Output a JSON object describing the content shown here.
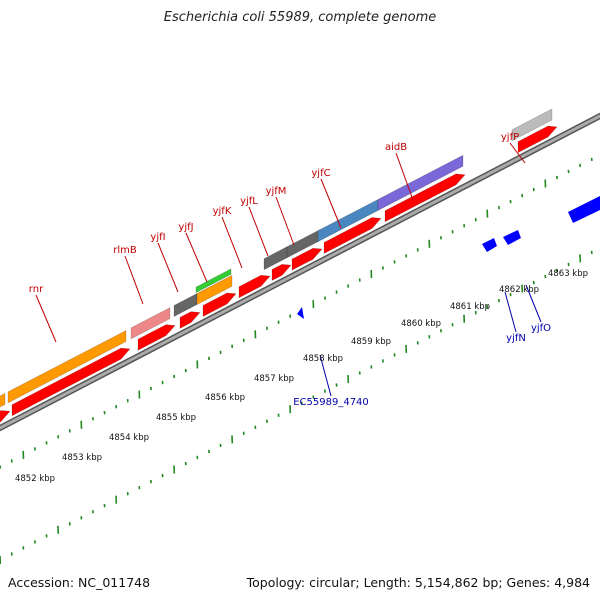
{
  "title": "Escherichia coli 55989, complete genome",
  "footer": {
    "accession": "Accession: NC_011748",
    "summary": "Topology: circular; Length: 5,154,862 bp; Genes: 4,984"
  },
  "colors": {
    "forward_label": "#c00000",
    "reverse_label": "#0000aa",
    "cds": "#ff0000",
    "cds_reverse": "#0000ff",
    "backbone": "#888888",
    "tick": "#228822"
  },
  "kbp_labels": [
    "4852 kbp",
    "4853 kbp",
    "4854 kbp",
    "4855 kbp",
    "4856 kbp",
    "4857 kbp",
    "4858 kbp",
    "4859 kbp",
    "4860 kbp",
    "4861 kbp",
    "4862 kbp",
    "4863 kbp"
  ],
  "forward_genes": [
    "rnr",
    "rlmB",
    "yjfI",
    "yjfJ",
    "yjfK",
    "yjfL",
    "yjfM",
    "yjfC",
    "aidB",
    "yjfP"
  ],
  "reverse_genes": [
    "EC55989_4740",
    "yjfN",
    "yjfO"
  ]
}
